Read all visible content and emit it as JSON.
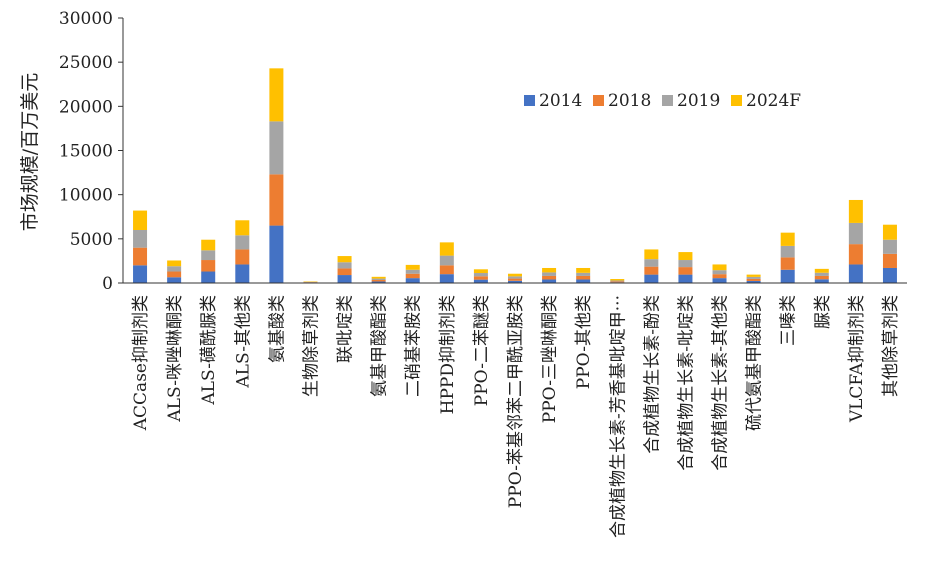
{
  "chart_data": {
    "type": "bar",
    "stacked": true,
    "title": "",
    "xlabel": "",
    "ylabel": "市场规模/百万美元",
    "ylim": [
      0,
      30000
    ],
    "yticks": [
      0,
      5000,
      10000,
      15000,
      20000,
      25000,
      30000
    ],
    "grid": false,
    "legend_position": "top-right",
    "categories": [
      "ACCase抑制剂类",
      "ALS-咪唑啉酮类",
      "ALS-磺酰脲类",
      "ALS-其他类",
      "氨基酸类",
      "生物除草剂类",
      "联吡啶类",
      "氨基甲酸酯类",
      "二硝基苯胺类",
      "HPPD抑制剂类",
      "PPO-二苯醚类",
      "PPO-苯基邻苯二甲酰亚胺类",
      "PPO-三唑啉酮类",
      "PPO-其他类",
      "合成植物生长素-芳香基吡啶甲···",
      "合成植物生长素-酚类",
      "合成植物生长素-吡啶类",
      "合成植物生长素-其他类",
      "硫代氨基甲酸酯类",
      "三嗪类",
      "脲类",
      "VLCFA抑制剂类",
      "其他除草剂类"
    ],
    "series": [
      {
        "name": "2014",
        "color": "#4472C4",
        "values": [
          2000,
          650,
          1300,
          2100,
          6500,
          50,
          900,
          170,
          550,
          1000,
          380,
          250,
          400,
          400,
          80,
          950,
          950,
          550,
          230,
          1500,
          420,
          2100,
          1700
        ]
      },
      {
        "name": "2018",
        "color": "#ED7D31",
        "values": [
          2000,
          650,
          1300,
          1700,
          5800,
          40,
          750,
          170,
          500,
          1000,
          380,
          250,
          400,
          400,
          100,
          900,
          850,
          450,
          230,
          1400,
          380,
          2300,
          1600
        ]
      },
      {
        "name": "2019",
        "color": "#A5A5A5",
        "values": [
          2000,
          600,
          1100,
          1600,
          6000,
          40,
          700,
          160,
          450,
          1100,
          370,
          250,
          400,
          350,
          100,
          850,
          800,
          450,
          230,
          1300,
          360,
          2400,
          1600
        ]
      },
      {
        "name": "2024F",
        "color": "#FFC000",
        "values": [
          2200,
          650,
          1200,
          1700,
          6000,
          50,
          700,
          200,
          550,
          1500,
          420,
          300,
          500,
          550,
          170,
          1100,
          900,
          650,
          260,
          1500,
          440,
          2600,
          1700
        ]
      }
    ]
  }
}
